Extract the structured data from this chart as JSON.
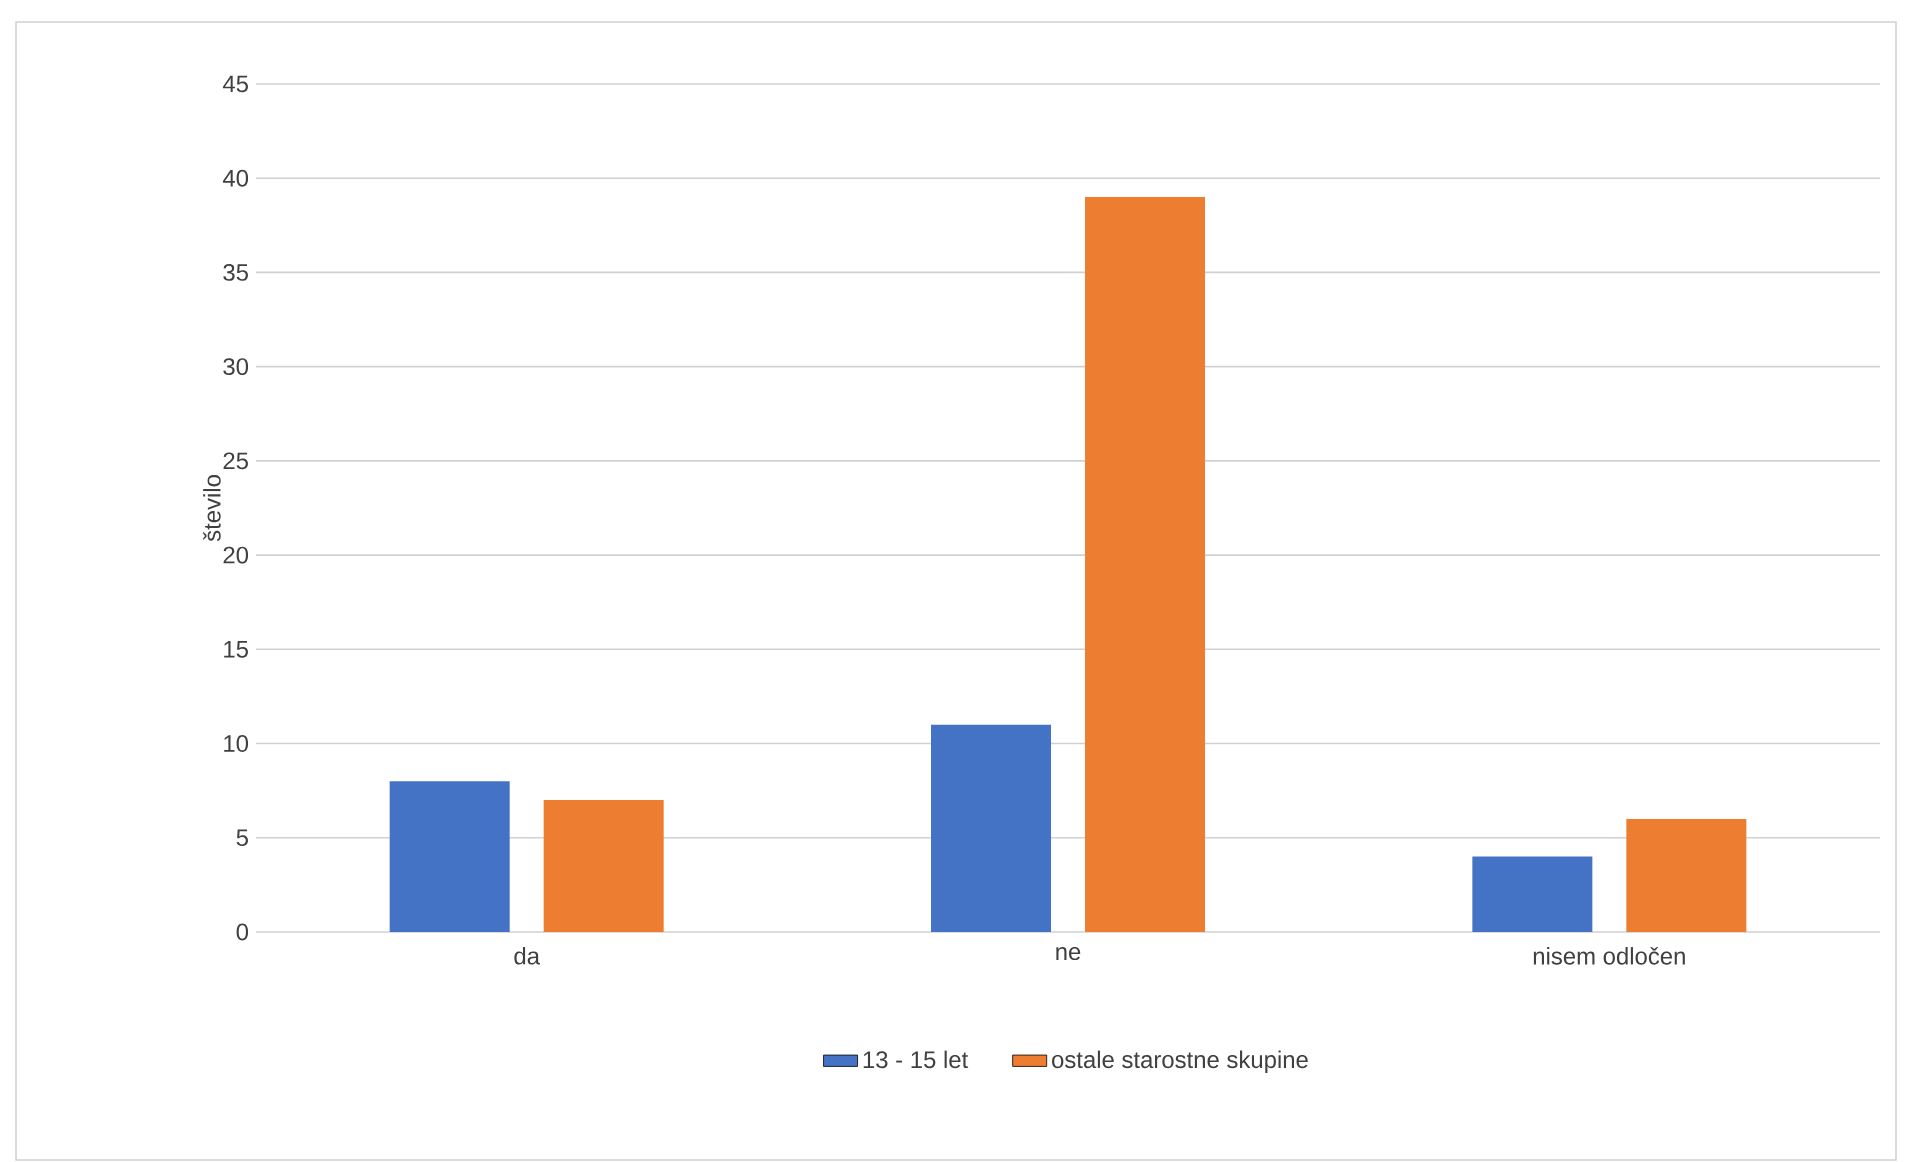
{
  "chart_data": {
    "type": "bar",
    "ylabel": "število",
    "categories": [
      "da",
      "ne",
      "nisem odločen"
    ],
    "series": [
      {
        "name": "13 - 15 let",
        "color": "#4472c4",
        "values": [
          8,
          11,
          4
        ]
      },
      {
        "name": "ostale starostne skupine",
        "color": "#ed7d31",
        "values": [
          7,
          39,
          6
        ]
      }
    ],
    "ylim": [
      0,
      45
    ],
    "yticks": [
      0,
      5,
      10,
      15,
      20,
      25,
      30,
      35,
      40,
      45
    ],
    "grid": "y",
    "legend": "bottom"
  }
}
